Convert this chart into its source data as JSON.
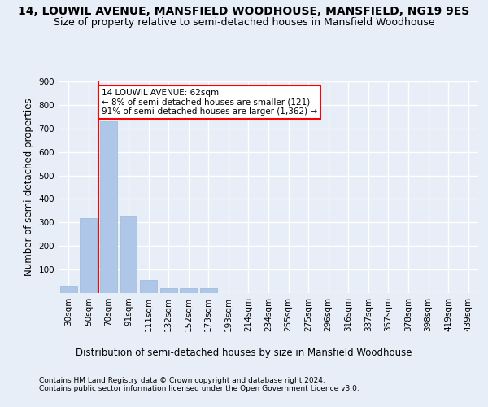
{
  "title1": "14, LOUWIL AVENUE, MANSFIELD WOODHOUSE, MANSFIELD, NG19 9ES",
  "title2": "Size of property relative to semi-detached houses in Mansfield Woodhouse",
  "xlabel": "Distribution of semi-detached houses by size in Mansfield Woodhouse",
  "ylabel": "Number of semi-detached properties",
  "footnote": "Contains HM Land Registry data © Crown copyright and database right 2024.\nContains public sector information licensed under the Open Government Licence v3.0.",
  "bar_labels": [
    "30sqm",
    "50sqm",
    "70sqm",
    "91sqm",
    "111sqm",
    "132sqm",
    "152sqm",
    "173sqm",
    "193sqm",
    "214sqm",
    "234sqm",
    "255sqm",
    "275sqm",
    "296sqm",
    "316sqm",
    "337sqm",
    "357sqm",
    "378sqm",
    "398sqm",
    "419sqm",
    "439sqm"
  ],
  "bar_values": [
    30,
    320,
    730,
    330,
    55,
    20,
    20,
    20,
    0,
    0,
    0,
    0,
    0,
    0,
    0,
    0,
    0,
    0,
    0,
    0,
    0
  ],
  "bar_color": "#aec6e8",
  "bar_edge_color": "#9ab8d8",
  "property_line_color": "red",
  "property_line_x": 1.5,
  "annotation_text": "14 LOUWIL AVENUE: 62sqm\n← 8% of semi-detached houses are smaller (121)\n91% of semi-detached houses are larger (1,362) →",
  "annotation_box_facecolor": "white",
  "annotation_box_edgecolor": "red",
  "ylim": [
    0,
    900
  ],
  "yticks": [
    0,
    100,
    200,
    300,
    400,
    500,
    600,
    700,
    800,
    900
  ],
  "bg_color": "#e8eef7",
  "plot_bg_color": "#e8eef7",
  "grid_color": "white",
  "title1_fontsize": 10,
  "title2_fontsize": 9,
  "tick_fontsize": 7.5,
  "ylabel_fontsize": 8.5,
  "xlabel_fontsize": 8.5,
  "footnote_fontsize": 6.5,
  "annotation_fontsize": 7.5
}
